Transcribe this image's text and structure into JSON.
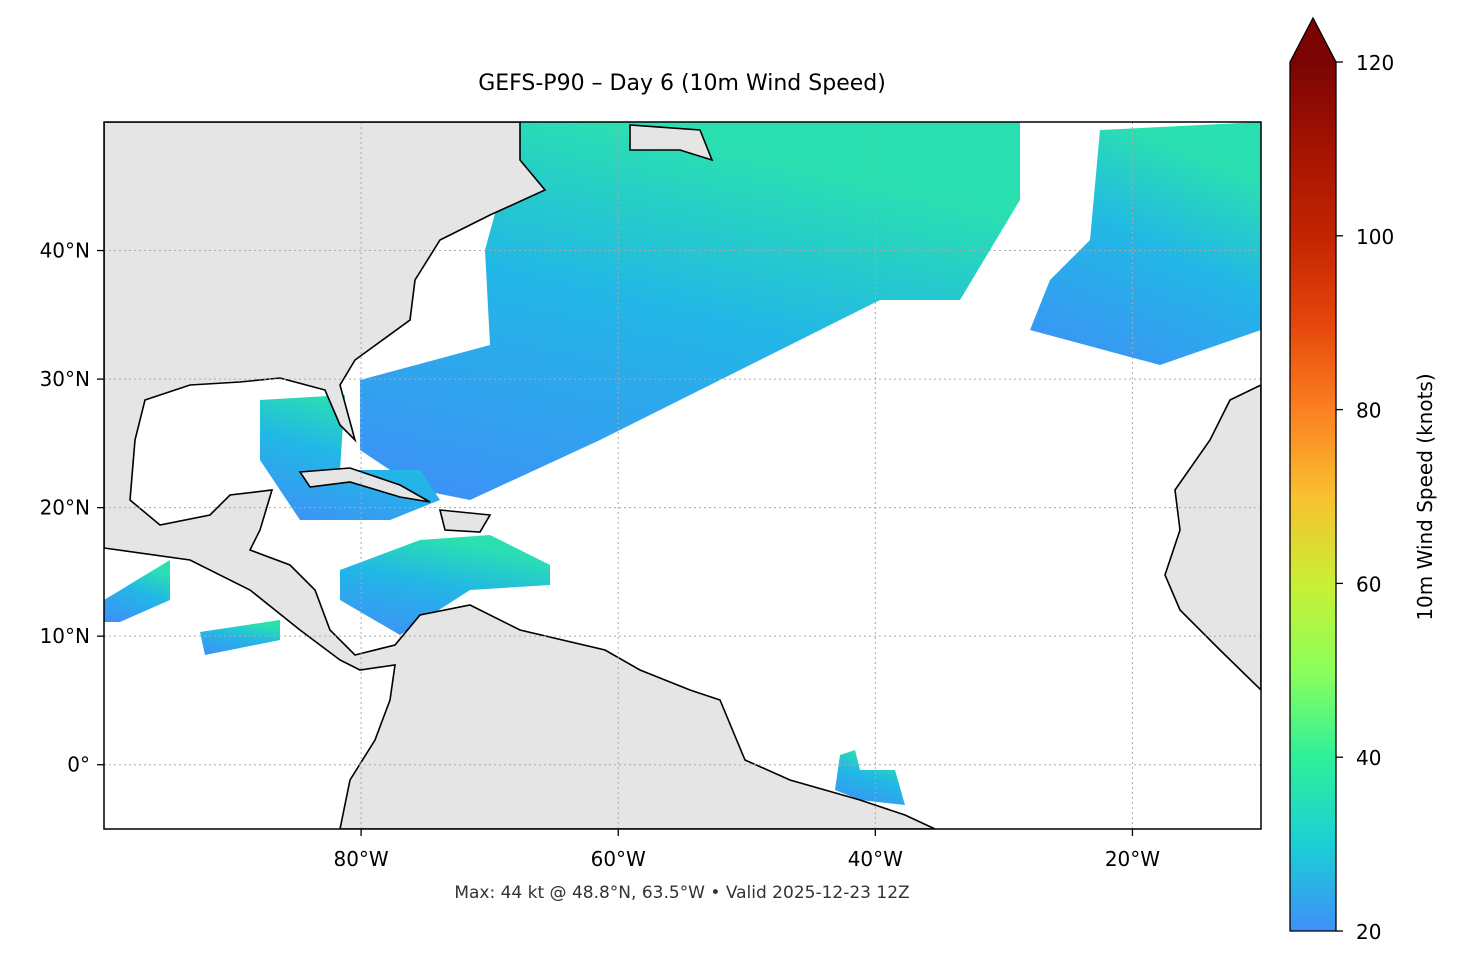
{
  "chart_data": {
    "type": "map",
    "title": "GEFS-P90 – Day 6 (10m Wind Speed)",
    "subtitle": "Max: 44 kt @ 48.8°N, 63.5°W • Valid 2025-12-23 12Z",
    "xlim": [
      -100,
      -10
    ],
    "ylim": [
      -5,
      50
    ],
    "xticks": [
      {
        "value": -80,
        "label": "80°W"
      },
      {
        "value": -60,
        "label": "60°W"
      },
      {
        "value": -40,
        "label": "40°W"
      },
      {
        "value": -20,
        "label": "20°W"
      }
    ],
    "yticks": [
      {
        "value": 0,
        "label": "0°"
      },
      {
        "value": 10,
        "label": "10°N"
      },
      {
        "value": 20,
        "label": "20°N"
      },
      {
        "value": 30,
        "label": "30°N"
      },
      {
        "value": 40,
        "label": "40°N"
      }
    ],
    "grid": true,
    "colorbar": {
      "label": "10m Wind Speed (knots)",
      "lim": [
        20,
        120
      ],
      "ticks": [
        20,
        40,
        60,
        80,
        100,
        120
      ],
      "extend": "max",
      "colors": [
        "#3f8ff7",
        "#1ad0d5",
        "#2ff09a",
        "#8cff5a",
        "#c9ef34",
        "#f9c02f",
        "#fb8022",
        "#e5460b",
        "#c22402",
        "#a51302",
        "#7a0403"
      ]
    }
  }
}
